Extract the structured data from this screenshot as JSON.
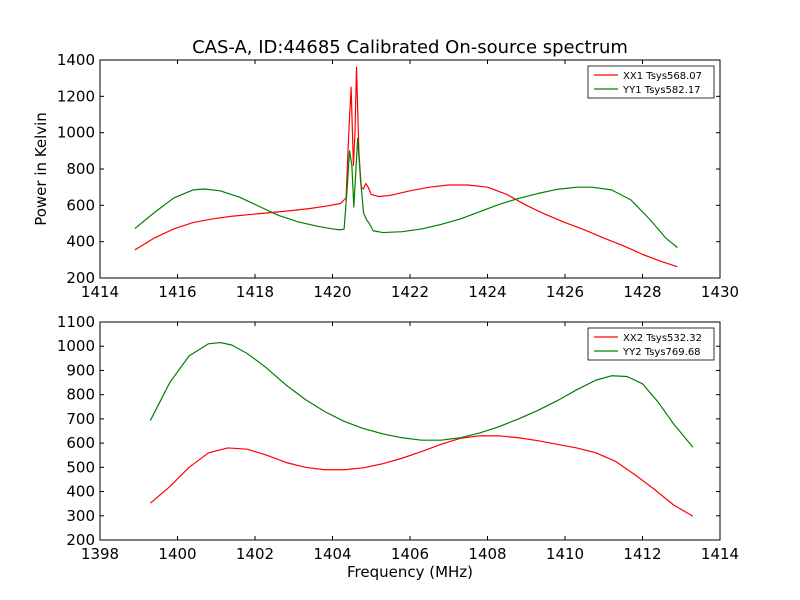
{
  "chart_data": [
    {
      "type": "line",
      "title": "CAS-A, ID:44685 Calibrated On-source spectrum",
      "xlabel": "",
      "ylabel": "Power in Kelvin",
      "xlim": [
        1414,
        1430
      ],
      "ylim": [
        200,
        1400
      ],
      "xticks": [
        "1414",
        "1416",
        "1418",
        "1420",
        "1422",
        "1424",
        "1426",
        "1428",
        "1430"
      ],
      "yticks": [
        "200",
        "400",
        "600",
        "800",
        "1000",
        "1200",
        "1400"
      ],
      "legend_position": "top-right",
      "series": [
        {
          "name": "XX1 Tsys568.07",
          "color": "#ff0000",
          "x": [
            1414.9,
            1415.4,
            1415.9,
            1416.4,
            1416.9,
            1417.4,
            1417.9,
            1418.4,
            1418.9,
            1419.4,
            1419.9,
            1420.2,
            1420.35,
            1420.42,
            1420.48,
            1420.54,
            1420.58,
            1420.62,
            1420.68,
            1420.74,
            1420.8,
            1420.86,
            1420.92,
            1421.0,
            1421.2,
            1421.5,
            1422.0,
            1422.5,
            1423.0,
            1423.5,
            1424.0,
            1424.5,
            1425.0,
            1425.5,
            1426.0,
            1426.5,
            1427.0,
            1427.5,
            1428.0,
            1428.5,
            1428.9
          ],
          "y": [
            355,
            420,
            470,
            505,
            525,
            540,
            550,
            560,
            570,
            582,
            598,
            610,
            640,
            1000,
            1250,
            820,
            1000,
            1360,
            900,
            700,
            690,
            720,
            700,
            660,
            648,
            655,
            680,
            700,
            712,
            712,
            700,
            660,
            600,
            550,
            505,
            465,
            420,
            378,
            330,
            290,
            262
          ]
        },
        {
          "name": "YY1 Tsys582.17",
          "color": "#008000",
          "x": [
            1414.9,
            1415.4,
            1415.9,
            1416.4,
            1416.7,
            1417.1,
            1417.6,
            1418.1,
            1418.6,
            1419.1,
            1419.6,
            1420.0,
            1420.2,
            1420.3,
            1420.38,
            1420.44,
            1420.5,
            1420.55,
            1420.6,
            1420.65,
            1420.72,
            1420.8,
            1420.88,
            1420.95,
            1421.05,
            1421.3,
            1421.8,
            1422.3,
            1422.8,
            1423.3,
            1423.8,
            1424.3,
            1424.8,
            1425.3,
            1425.8,
            1426.3,
            1426.7,
            1427.2,
            1427.7,
            1428.2,
            1428.6,
            1428.9
          ],
          "y": [
            472,
            560,
            640,
            685,
            690,
            680,
            645,
            595,
            545,
            510,
            485,
            470,
            465,
            470,
            700,
            900,
            820,
            590,
            780,
            970,
            750,
            560,
            520,
            500,
            460,
            450,
            455,
            470,
            495,
            525,
            565,
            605,
            638,
            665,
            688,
            700,
            700,
            685,
            630,
            520,
            420,
            368
          ]
        }
      ]
    },
    {
      "type": "line",
      "title": "",
      "xlabel": "Frequency (MHz)",
      "ylabel": "",
      "xlim": [
        1398,
        1414
      ],
      "ylim": [
        200,
        1100
      ],
      "xticks": [
        "1398",
        "1400",
        "1402",
        "1404",
        "1406",
        "1408",
        "1410",
        "1412",
        "1414"
      ],
      "yticks": [
        "200",
        "300",
        "400",
        "500",
        "600",
        "700",
        "800",
        "900",
        "1000",
        "1100"
      ],
      "legend_position": "top-right",
      "series": [
        {
          "name": "XX2 Tsys532.32",
          "color": "#ff0000",
          "x": [
            1399.3,
            1399.8,
            1400.3,
            1400.8,
            1401.3,
            1401.8,
            1402.3,
            1402.8,
            1403.3,
            1403.8,
            1404.3,
            1404.8,
            1405.3,
            1405.8,
            1406.3,
            1406.8,
            1407.3,
            1407.8,
            1408.3,
            1408.8,
            1409.3,
            1409.8,
            1410.3,
            1410.8,
            1411.3,
            1411.8,
            1412.3,
            1412.8,
            1413.3
          ],
          "y": [
            352,
            420,
            500,
            560,
            580,
            575,
            550,
            520,
            500,
            490,
            490,
            498,
            515,
            538,
            565,
            595,
            620,
            630,
            630,
            622,
            610,
            595,
            580,
            560,
            525,
            470,
            410,
            345,
            298
          ]
        },
        {
          "name": "YY2 Tsys769.68",
          "color": "#008000",
          "x": [
            1399.3,
            1399.8,
            1400.3,
            1400.8,
            1401.1,
            1401.4,
            1401.8,
            1402.3,
            1402.8,
            1403.3,
            1403.8,
            1404.3,
            1404.8,
            1405.3,
            1405.8,
            1406.3,
            1406.8,
            1407.3,
            1407.8,
            1408.3,
            1408.8,
            1409.3,
            1409.8,
            1410.3,
            1410.8,
            1411.2,
            1411.6,
            1412.0,
            1412.4,
            1412.8,
            1413.3
          ],
          "y": [
            693,
            850,
            960,
            1010,
            1015,
            1005,
            970,
            910,
            840,
            780,
            730,
            690,
            660,
            638,
            622,
            612,
            612,
            622,
            642,
            668,
            700,
            735,
            775,
            820,
            860,
            878,
            875,
            845,
            770,
            680,
            583
          ]
        }
      ]
    }
  ]
}
